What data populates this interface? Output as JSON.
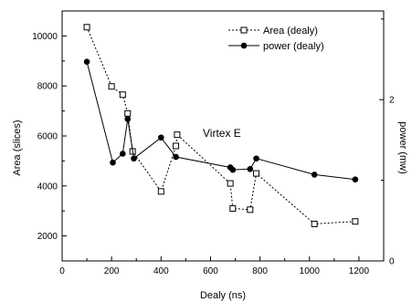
{
  "chart_data": {
    "type": "line",
    "annotation": "Virtex E",
    "xlabel": "Dealy (ns)",
    "ylabel_left": "Area (slices)",
    "ylabel_right": "power (mw)",
    "xlim": [
      0,
      1300
    ],
    "ylim_left": [
      1000,
      11000
    ],
    "ylim_right": [
      0,
      3.1
    ],
    "x_ticks": [
      0,
      200,
      400,
      600,
      800,
      1000,
      1200
    ],
    "y_left_ticks": [
      2000,
      4000,
      6000,
      8000,
      10000
    ],
    "y_right_ticks": [
      0,
      2
    ],
    "legend_position": "top-right",
    "grid": false,
    "series": [
      {
        "name": "Area (dealy)",
        "axis": "left",
        "marker": "open-square",
        "line": "dotted",
        "x": [
          100,
          200,
          245,
          265,
          285,
          400,
          460,
          465,
          680,
          690,
          760,
          785,
          1020,
          1185
        ],
        "y": [
          10350,
          7980,
          7650,
          6900,
          5380,
          3780,
          5600,
          6050,
          4100,
          3100,
          3050,
          4500,
          2480,
          2580
        ]
      },
      {
        "name": "power (dealy)",
        "axis": "right",
        "marker": "filled-circle",
        "line": "solid",
        "x": [
          100,
          205,
          245,
          265,
          290,
          400,
          460,
          680,
          690,
          760,
          785,
          1020,
          1185
        ],
        "y": [
          2.47,
          1.22,
          1.33,
          1.76,
          1.27,
          1.53,
          1.29,
          1.16,
          1.13,
          1.14,
          1.27,
          1.07,
          1.01
        ]
      }
    ]
  }
}
